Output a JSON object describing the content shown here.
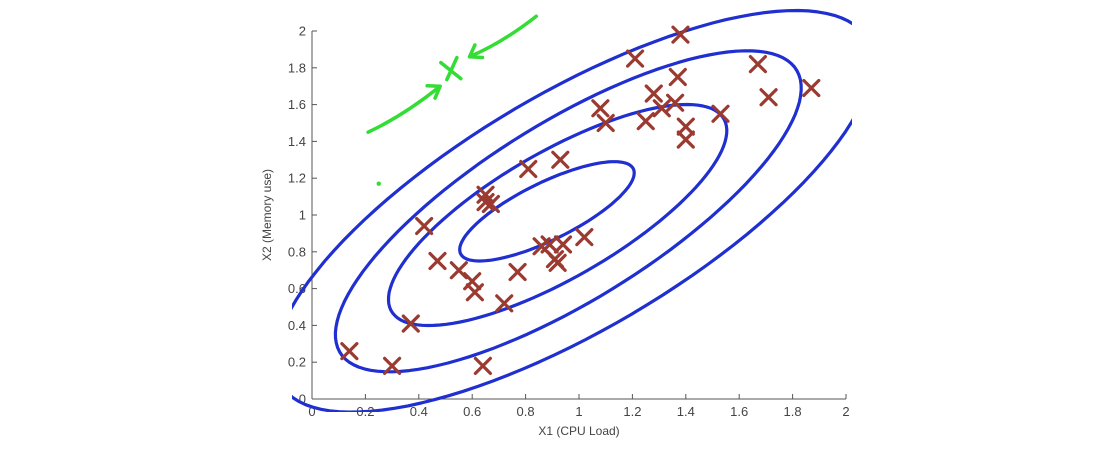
{
  "chart_data": {
    "type": "scatter",
    "xlabel": "X1 (CPU Load)",
    "ylabel": "X2 (Memory use)",
    "xlim": [
      0,
      2
    ],
    "ylim": [
      0,
      2
    ],
    "x_ticks": [
      "0",
      "0.2",
      "0.4",
      "0.6",
      "0.8",
      "1",
      "1.2",
      "1.4",
      "1.6",
      "1.8",
      "2"
    ],
    "y_ticks": [
      "0",
      "0.2",
      "0.4",
      "0.6",
      "0.8",
      "1",
      "1.2",
      "1.4",
      "1.6",
      "1.8",
      "2"
    ],
    "grid": false,
    "marker": "x",
    "colors": {
      "points": "#9b3a30",
      "contours": "#1f2fd0",
      "annotation": "#33dd33",
      "axis": "#555555"
    },
    "series": [
      {
        "x": [
          0.14,
          0.3,
          0.37,
          0.42,
          0.47,
          0.55,
          0.6,
          0.61,
          0.64,
          0.65,
          0.65,
          0.67,
          0.72,
          0.77,
          0.81,
          0.86,
          0.89,
          0.91,
          0.92,
          0.93,
          0.94,
          1.02,
          1.08,
          1.1,
          1.21,
          1.25,
          1.28,
          1.31,
          1.36,
          1.37,
          1.38,
          1.4,
          1.4,
          1.53,
          1.67,
          1.71,
          1.87
        ],
        "y": [
          0.26,
          0.18,
          0.41,
          0.94,
          0.75,
          0.7,
          0.64,
          0.58,
          0.18,
          1.11,
          1.07,
          1.06,
          0.52,
          0.69,
          1.25,
          0.83,
          0.84,
          0.76,
          0.74,
          1.3,
          0.84,
          0.88,
          1.58,
          1.5,
          1.85,
          1.51,
          1.66,
          1.58,
          1.61,
          1.75,
          1.98,
          1.48,
          1.41,
          1.55,
          1.82,
          1.64,
          1.69
        ]
      }
    ],
    "contours": [
      {
        "label": "inner",
        "cx": 0.88,
        "cy": 1.02,
        "rx": 0.4,
        "ry": 0.14,
        "angle_deg": 38
      },
      {
        "label": "second",
        "cx": 0.92,
        "cy": 1.0,
        "rx": 0.82,
        "ry": 0.3,
        "angle_deg": 43
      },
      {
        "label": "third",
        "cx": 0.96,
        "cy": 1.02,
        "rx": 1.16,
        "ry": 0.42,
        "angle_deg": 45
      },
      {
        "label": "outer",
        "cx": 0.98,
        "cy": 1.02,
        "rx": 1.46,
        "ry": 0.56,
        "angle_deg": 44
      }
    ],
    "annotation_glyphs": [
      {
        "name": "green-x-mark",
        "kind": "x",
        "x": 0.52,
        "y": 1.79
      },
      {
        "name": "green-arrow-in",
        "kind": "arrow",
        "from": [
          0.21,
          1.45
        ],
        "to": [
          0.48,
          1.7
        ]
      },
      {
        "name": "green-arrow-out",
        "kind": "arrow",
        "from": [
          0.84,
          2.08
        ],
        "to": [
          0.59,
          1.86
        ]
      },
      {
        "name": "green-dot",
        "kind": "dot",
        "x": 0.25,
        "y": 1.17
      }
    ]
  }
}
